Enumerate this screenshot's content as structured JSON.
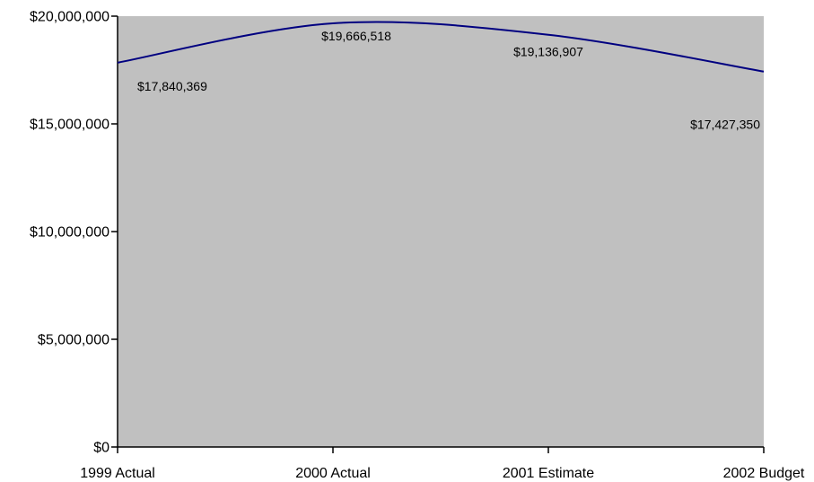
{
  "chart_data": {
    "type": "line",
    "categories": [
      "1999 Actual",
      "2000 Actual",
      "2001 Estimate",
      "2002 Budget"
    ],
    "series": [
      {
        "values": [
          17840369,
          19666518,
          19136907,
          17427350
        ]
      }
    ],
    "data_labels": [
      "$17,840,369",
      "$19,666,518",
      "$19,136,907",
      "$17,427,350"
    ],
    "y_ticks": [
      0,
      5000000,
      10000000,
      15000000,
      20000000
    ],
    "y_tick_labels": [
      "$0",
      "$5,000,000",
      "$10,000,000",
      "$15,000,000",
      "$20,000,000"
    ],
    "ylim": [
      0,
      20000000
    ],
    "title": "",
    "xlabel": "",
    "ylabel": "",
    "line_smoothed": true,
    "grid": false,
    "legend": "none",
    "colors": {
      "plot_background": "#c0c0c0",
      "line": "#000080",
      "axis": "#000000"
    }
  }
}
